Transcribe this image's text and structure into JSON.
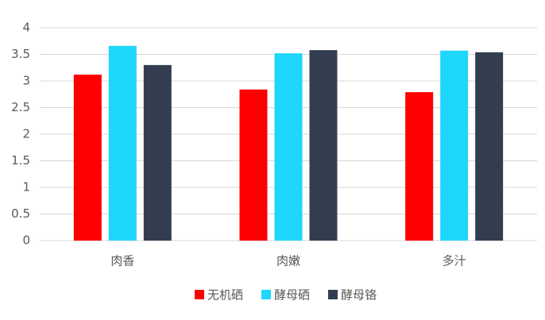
{
  "chart_data": {
    "type": "bar",
    "categories": [
      "肉香",
      "肉嫩",
      "多汁"
    ],
    "series": [
      {
        "name": "无机硒",
        "color": "#ff0000",
        "values": [
          3.12,
          2.84,
          2.79
        ]
      },
      {
        "name": "酵母硒",
        "color": "#1fd6fb",
        "values": [
          3.66,
          3.52,
          3.57
        ]
      },
      {
        "name": "酵母铬",
        "color": "#323e50",
        "values": [
          3.3,
          3.58,
          3.54
        ]
      }
    ],
    "ylim": [
      0,
      4
    ],
    "yticks": [
      0,
      0.5,
      1,
      1.5,
      2,
      2.5,
      3,
      3.5,
      4
    ],
    "grid": true,
    "legend": "bottom"
  }
}
